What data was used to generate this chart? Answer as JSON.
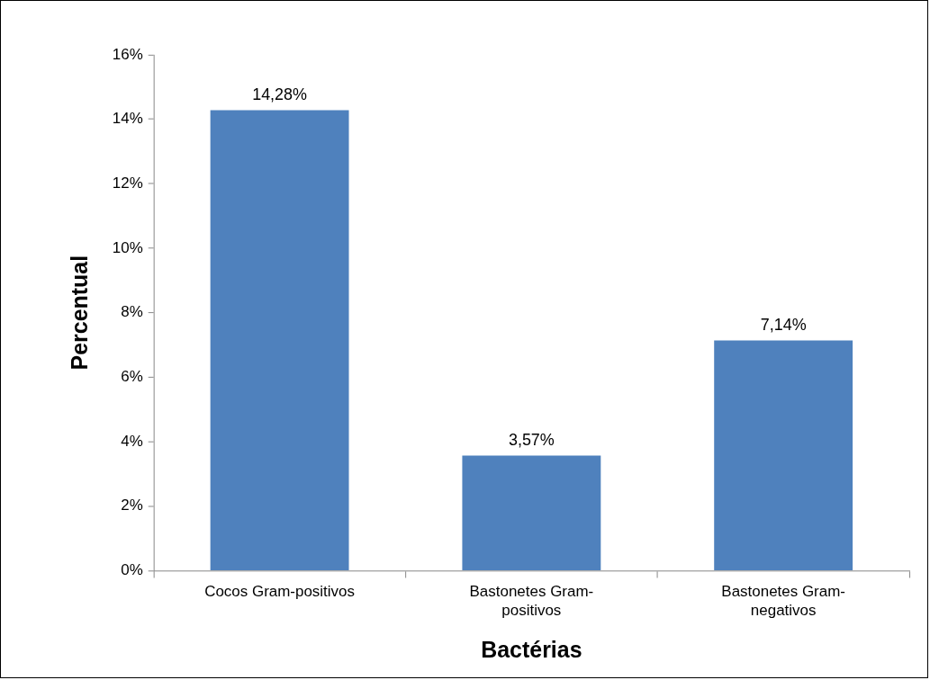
{
  "chart_data": {
    "type": "bar",
    "xlabel": "Bactérias",
    "ylabel": "Percentual",
    "categories": [
      "Cocos Gram-positivos",
      "Bastonetes Gram-positivos",
      "Bastonetes Gram-negativos"
    ],
    "values": [
      14.28,
      3.57,
      7.14
    ],
    "color": "#4f81bd",
    "value_labels": [
      "14,28%",
      "3,57%",
      "7,14%"
    ],
    "ylim": [
      0,
      16
    ],
    "yticks": [
      {
        "value": 0,
        "label": "0%"
      },
      {
        "value": 2,
        "label": "2%"
      },
      {
        "value": 4,
        "label": "4%"
      },
      {
        "value": 6,
        "label": "6%"
      },
      {
        "value": 8,
        "label": "8%"
      },
      {
        "value": 10,
        "label": "10%"
      },
      {
        "value": 12,
        "label": "12%"
      },
      {
        "value": 14,
        "label": "14%"
      },
      {
        "value": 16,
        "label": "16%"
      }
    ]
  }
}
